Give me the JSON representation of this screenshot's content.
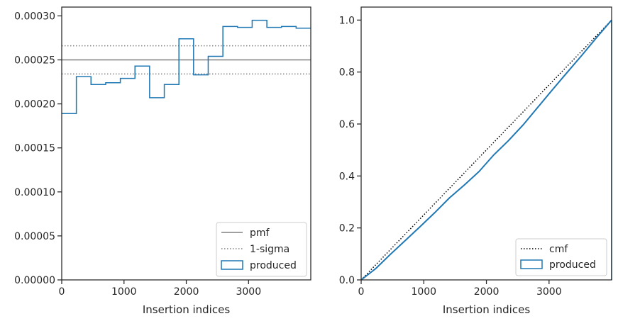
{
  "chart_data": [
    {
      "type": "step",
      "xlabel": "Insertion indices",
      "ylabel": "",
      "xlim": [
        0,
        3999
      ],
      "ylim": [
        0,
        0.00031
      ],
      "x_ticks": [
        0,
        1000,
        2000,
        3000
      ],
      "y_ticks": [
        0,
        5e-05,
        0.0001,
        0.00015,
        0.0002,
        0.00025,
        0.0003
      ],
      "x_tick_labels": [
        "0",
        "1000",
        "2000",
        "3000"
      ],
      "y_tick_labels": [
        "0.00000",
        "0.00005",
        "0.00010",
        "0.00015",
        "0.00020",
        "0.00025",
        "0.00030"
      ],
      "legend_position": "bottom-right",
      "legend": [
        "pmf",
        "1-sigma",
        "produced"
      ],
      "grid": false,
      "pmf": 0.00025,
      "sigma_band": [
        0.000234,
        0.000266
      ],
      "series": [
        {
          "name": "produced",
          "color": "#1f77b4",
          "bin_edges": [
            0,
            235,
            470,
            706,
            941,
            1176,
            1411,
            1647,
            1882,
            2117,
            2352,
            2588,
            2823,
            3058,
            3294,
            3529,
            3764,
            3999
          ],
          "values": [
            0.000189,
            0.000231,
            0.000222,
            0.000224,
            0.000229,
            0.000243,
            0.000207,
            0.000222,
            0.000274,
            0.000233,
            0.000254,
            0.000288,
            0.000287,
            0.000295,
            0.000287,
            0.000288,
            0.000286
          ]
        }
      ],
      "lines": {
        "pmf_color": "#808080",
        "sigma_color": "#808080"
      }
    },
    {
      "type": "line",
      "xlabel": "Insertion indices",
      "ylabel": "",
      "xlim": [
        0,
        3999
      ],
      "ylim": [
        0,
        1.05
      ],
      "x_ticks": [
        0,
        1000,
        2000,
        3000
      ],
      "y_ticks": [
        0,
        0.2,
        0.4,
        0.6,
        0.8,
        1.0
      ],
      "x_tick_labels": [
        "0",
        "1000",
        "2000",
        "3000"
      ],
      "y_tick_labels": [
        "0.0",
        "0.2",
        "0.4",
        "0.6",
        "0.8",
        "1.0"
      ],
      "legend_position": "bottom-right",
      "legend": [
        "cmf",
        "produced"
      ],
      "grid": false,
      "series": [
        {
          "name": "cmf",
          "color": "#000000",
          "x": [
            0,
            3999
          ],
          "y": [
            0,
            1.0
          ]
        },
        {
          "name": "produced",
          "color": "#1f77b4",
          "x": [
            0,
            235,
            470,
            706,
            941,
            1176,
            1411,
            1647,
            1882,
            2117,
            2352,
            2588,
            2823,
            3058,
            3294,
            3529,
            3764,
            3999
          ],
          "y": [
            0,
            0.044,
            0.099,
            0.152,
            0.205,
            0.259,
            0.316,
            0.365,
            0.417,
            0.481,
            0.536,
            0.597,
            0.665,
            0.733,
            0.8,
            0.866,
            0.934,
            1.0
          ]
        }
      ]
    }
  ]
}
